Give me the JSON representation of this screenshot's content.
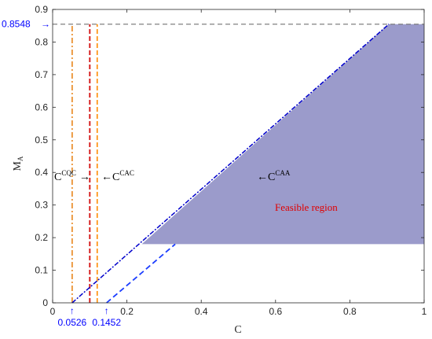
{
  "chart_data": {
    "type": "line",
    "xlabel": "C",
    "ylabel": "M",
    "ylabel_sub": "A",
    "xlim": [
      0,
      1
    ],
    "ylim": [
      0,
      0.9
    ],
    "xticks": [
      "0",
      "0.2",
      "0.4",
      "0.6",
      "0.8",
      "1"
    ],
    "yticks": [
      "0",
      "0.1",
      "0.2",
      "0.3",
      "0.4",
      "0.5",
      "0.6",
      "0.7",
      "0.8",
      "0.9"
    ],
    "grid": false,
    "feasible_region": {
      "label": "Feasible region",
      "color": "#9b9bcb",
      "polygon": [
        [
          0.24,
          0.18
        ],
        [
          0.905,
          0.8548
        ],
        [
          1.0,
          0.8548
        ],
        [
          1.0,
          0.18
        ]
      ]
    },
    "horizontal_line": {
      "y": 0.8548,
      "label": "0.8548",
      "color": "#808080",
      "x_range": [
        0,
        1
      ]
    },
    "lines": [
      {
        "name": "CQC",
        "color": "#e8861c",
        "style": "dashdot",
        "x": 0.0526,
        "y_range": [
          0,
          0.8548
        ]
      },
      {
        "name": "CAC-red",
        "color": "#d62020",
        "style": "dashed",
        "x": 0.1,
        "y_range": [
          0,
          0.8548
        ]
      },
      {
        "name": "CAC-orange",
        "color": "#ff8c00",
        "style": "dashed",
        "x": 0.12,
        "y_range": [
          0,
          0.8548
        ]
      },
      {
        "name": "CAA-boundary",
        "color": "#0000cc",
        "style": "dashdot",
        "points": [
          [
            0.0526,
            0
          ],
          [
            0.905,
            0.8548
          ]
        ]
      },
      {
        "name": "lower-boundary",
        "color": "#1a3cff",
        "style": "dashed",
        "points": [
          [
            0.1452,
            0
          ],
          [
            0.33,
            0.18
          ]
        ]
      }
    ],
    "x_markers": [
      {
        "x": 0.0526,
        "label": "0.0526"
      },
      {
        "x": 0.1452,
        "label": "0.1452"
      }
    ],
    "annotations": [
      {
        "base": "C",
        "sup": "CQC",
        "arrow": "→"
      },
      {
        "base": "C",
        "sup": "CAC",
        "arrow": "←"
      },
      {
        "base": "C",
        "sup": "CAA",
        "arrow": "←"
      }
    ]
  }
}
